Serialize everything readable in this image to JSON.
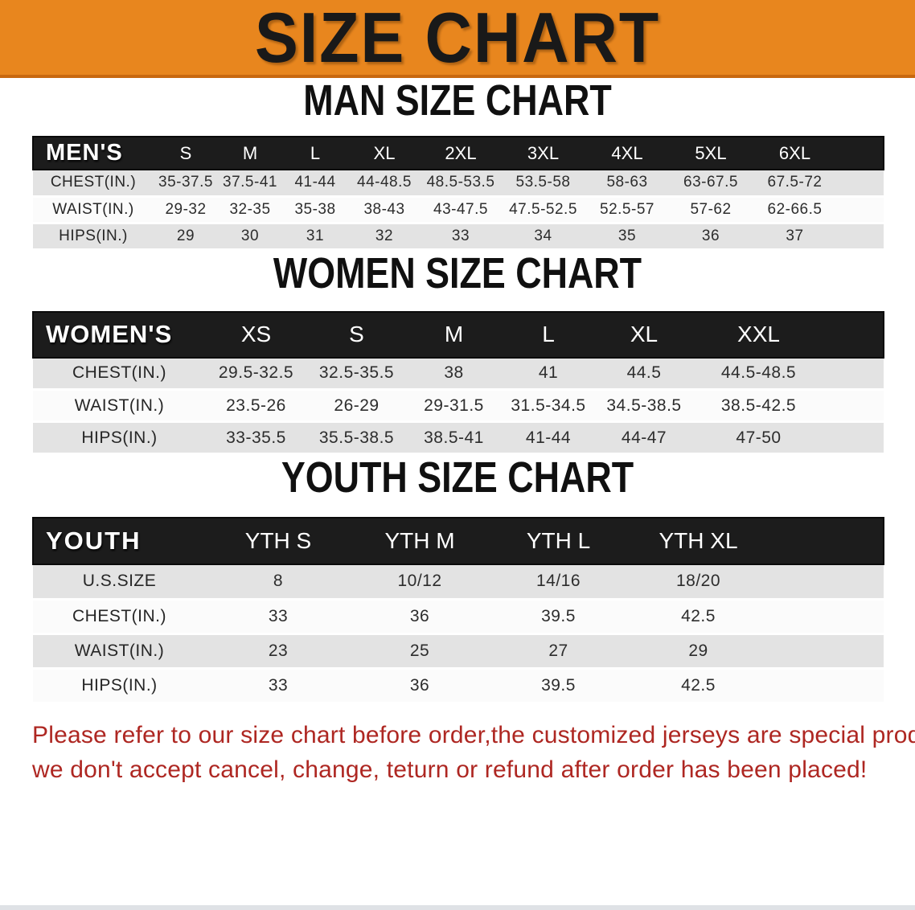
{
  "banner": {
    "title": "SIZE CHART"
  },
  "sections": [
    {
      "heading": "MAN SIZE CHART",
      "header_label": "MEN'S",
      "columns": [
        "S",
        "M",
        "L",
        "XL",
        "2XL",
        "3XL",
        "4XL",
        "5XL",
        "6XL"
      ],
      "rows": [
        {
          "label": "CHEST(IN.)",
          "values": [
            "35-37.5",
            "37.5-41",
            "41-44",
            "44-48.5",
            "48.5-53.5",
            "53.5-58",
            "58-63",
            "63-67.5",
            "67.5-72"
          ]
        },
        {
          "label": "WAIST(IN.)",
          "values": [
            "29-32",
            "32-35",
            "35-38",
            "38-43",
            "43-47.5",
            "47.5-52.5",
            "52.5-57",
            "57-62",
            "62-66.5"
          ]
        },
        {
          "label": "HIPS(IN.)",
          "values": [
            "29",
            "30",
            "31",
            "32",
            "33",
            "34",
            "35",
            "36",
            "37"
          ]
        }
      ]
    },
    {
      "heading": "WOMEN SIZE CHART",
      "header_label": "WOMEN'S",
      "columns": [
        "XS",
        "S",
        "M",
        "L",
        "XL",
        "XXL"
      ],
      "rows": [
        {
          "label": "CHEST(IN.)",
          "values": [
            "29.5-32.5",
            "32.5-35.5",
            "38",
            "41",
            "44.5",
            "44.5-48.5"
          ]
        },
        {
          "label": "WAIST(IN.)",
          "values": [
            "23.5-26",
            "26-29",
            "29-31.5",
            "31.5-34.5",
            "34.5-38.5",
            "38.5-42.5"
          ]
        },
        {
          "label": "HIPS(IN.)",
          "values": [
            "33-35.5",
            "35.5-38.5",
            "38.5-41",
            "41-44",
            "44-47",
            "47-50"
          ]
        }
      ]
    },
    {
      "heading": "YOUTH SIZE CHART",
      "header_label": "YOUTH",
      "columns": [
        "YTH S",
        "YTH M",
        "YTH L",
        "YTH XL"
      ],
      "rows": [
        {
          "label": "U.S.SIZE",
          "values": [
            "8",
            "10/12",
            "14/16",
            "18/20"
          ]
        },
        {
          "label": "CHEST(IN.)",
          "values": [
            "33",
            "36",
            "39.5",
            "42.5"
          ]
        },
        {
          "label": "WAIST(IN.)",
          "values": [
            "23",
            "25",
            "27",
            "29"
          ]
        },
        {
          "label": "HIPS(IN.)",
          "values": [
            "33",
            "36",
            "39.5",
            "42.5"
          ]
        }
      ]
    }
  ],
  "disclaimer": {
    "line1": "Please refer to our size chart before order,the customized jerseys are special products,",
    "line2": "we don't accept cancel, change, teturn or refund after order has been placed!"
  },
  "colors": {
    "banner_orange": "#E8861E",
    "banner_border": "#C8680F",
    "table_header_black": "#1C1C1C",
    "row_gray": "#E3E3E3",
    "row_white": "#FBFBFB",
    "disclaimer_red": "#AE2722"
  }
}
